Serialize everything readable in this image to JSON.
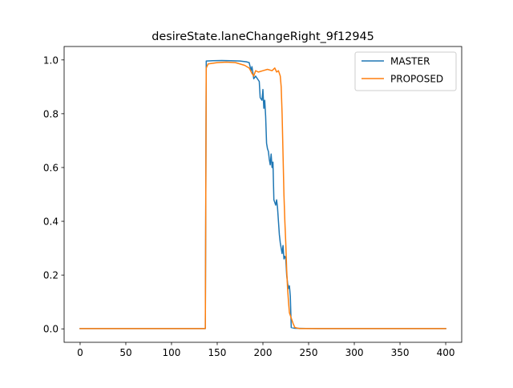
{
  "chart_data": {
    "type": "line",
    "title": "desireState.laneChangeRight_9f12945",
    "xlabel": "",
    "ylabel": "",
    "xlim": [
      -17.5,
      417.5
    ],
    "ylim": [
      -0.05,
      1.05
    ],
    "xticks": [
      0,
      50,
      100,
      150,
      200,
      250,
      300,
      350,
      400
    ],
    "yticks": [
      0.0,
      0.2,
      0.4,
      0.6,
      0.8,
      1.0
    ],
    "xtick_labels": [
      "0",
      "50",
      "100",
      "150",
      "200",
      "250",
      "300",
      "350",
      "400"
    ],
    "ytick_labels": [
      "0.0",
      "0.2",
      "0.4",
      "0.6",
      "0.8",
      "1.0"
    ],
    "grid": false,
    "legend_position": "top-right",
    "series": [
      {
        "name": "MASTER",
        "color": "#1f77b4",
        "points": [
          [
            0,
            0.001
          ],
          [
            50,
            0.001
          ],
          [
            100,
            0.001
          ],
          [
            137,
            0.001
          ],
          [
            138,
            0.996
          ],
          [
            145,
            0.997
          ],
          [
            155,
            0.998
          ],
          [
            165,
            0.997
          ],
          [
            175,
            0.996
          ],
          [
            182,
            0.993
          ],
          [
            185,
            0.99
          ],
          [
            187,
            0.96
          ],
          [
            188,
            0.975
          ],
          [
            190,
            0.93
          ],
          [
            192,
            0.94
          ],
          [
            194,
            0.93
          ],
          [
            196,
            0.92
          ],
          [
            197,
            0.86
          ],
          [
            199,
            0.85
          ],
          [
            200,
            0.89
          ],
          [
            201,
            0.82
          ],
          [
            202,
            0.85
          ],
          [
            203,
            0.79
          ],
          [
            204,
            0.69
          ],
          [
            205,
            0.67
          ],
          [
            206,
            0.66
          ],
          [
            207,
            0.63
          ],
          [
            208,
            0.61
          ],
          [
            209,
            0.65
          ],
          [
            210,
            0.6
          ],
          [
            211,
            0.62
          ],
          [
            212,
            0.48
          ],
          [
            213,
            0.47
          ],
          [
            214,
            0.46
          ],
          [
            215,
            0.48
          ],
          [
            216,
            0.45
          ],
          [
            217,
            0.4
          ],
          [
            218,
            0.35
          ],
          [
            219,
            0.32
          ],
          [
            220,
            0.3
          ],
          [
            221,
            0.28
          ],
          [
            222,
            0.31
          ],
          [
            223,
            0.26
          ],
          [
            224,
            0.27
          ],
          [
            225,
            0.26
          ],
          [
            226,
            0.2
          ],
          [
            227,
            0.17
          ],
          [
            228,
            0.15
          ],
          [
            229,
            0.16
          ],
          [
            230,
            0.12
          ],
          [
            231,
            0.005
          ],
          [
            235,
            0.002
          ],
          [
            260,
            0.001
          ],
          [
            300,
            0.001
          ],
          [
            350,
            0.001
          ],
          [
            400,
            0.001
          ]
        ]
      },
      {
        "name": "PROPOSED",
        "color": "#ff7f0e",
        "points": [
          [
            0,
            0.001
          ],
          [
            50,
            0.001
          ],
          [
            100,
            0.001
          ],
          [
            137,
            0.001
          ],
          [
            138,
            0.97
          ],
          [
            140,
            0.985
          ],
          [
            150,
            0.99
          ],
          [
            160,
            0.992
          ],
          [
            170,
            0.99
          ],
          [
            180,
            0.98
          ],
          [
            185,
            0.97
          ],
          [
            188,
            0.95
          ],
          [
            190,
            0.94
          ],
          [
            192,
            0.96
          ],
          [
            195,
            0.955
          ],
          [
            200,
            0.96
          ],
          [
            205,
            0.965
          ],
          [
            210,
            0.96
          ],
          [
            213,
            0.97
          ],
          [
            215,
            0.955
          ],
          [
            217,
            0.96
          ],
          [
            219,
            0.94
          ],
          [
            220,
            0.9
          ],
          [
            221,
            0.8
          ],
          [
            222,
            0.65
          ],
          [
            223,
            0.5
          ],
          [
            224,
            0.4
          ],
          [
            225,
            0.32
          ],
          [
            226,
            0.22
          ],
          [
            227,
            0.15
          ],
          [
            228,
            0.1
          ],
          [
            229,
            0.06
          ],
          [
            231,
            0.04
          ],
          [
            233,
            0.02
          ],
          [
            235,
            0.005
          ],
          [
            240,
            0.001
          ],
          [
            260,
            0.001
          ],
          [
            300,
            0.001
          ],
          [
            350,
            0.001
          ],
          [
            400,
            0.001
          ]
        ]
      }
    ]
  }
}
